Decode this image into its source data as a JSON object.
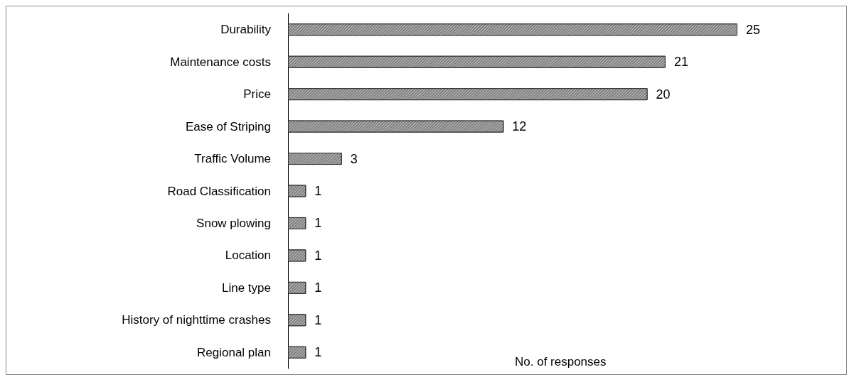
{
  "chart_data": {
    "type": "bar",
    "orientation": "horizontal",
    "xlabel": "No. of responses",
    "categories": [
      "Durability",
      "Maintenance costs",
      "Price",
      "Ease of Striping",
      "Traffic Volume",
      "Road Classification",
      "Snow plowing",
      "Location",
      "Line type",
      "History of nighttime crashes",
      "Regional plan"
    ],
    "values": [
      25,
      21,
      20,
      12,
      3,
      1,
      1,
      1,
      1,
      1,
      1
    ],
    "color": "#7f7f7f",
    "data_labels": true
  }
}
